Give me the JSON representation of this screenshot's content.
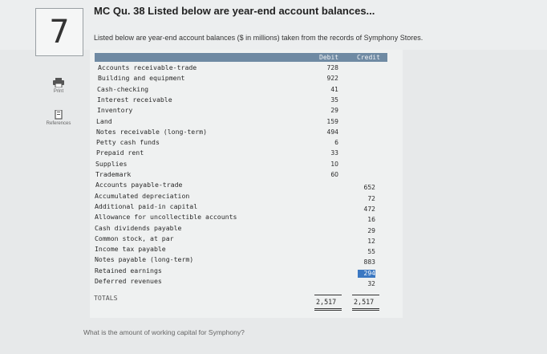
{
  "question": {
    "number": "7",
    "title": "MC Qu. 38 Listed below are year-end account balances...",
    "prompt": "Listed below are year-end account balances ($ in millions) taken from the records of Symphony Stores.",
    "ask": "What is the amount of working capital for Symphony?"
  },
  "sidebar": {
    "print_label": "Print",
    "references_label": "References"
  },
  "table": {
    "debit_header": "Debit",
    "credit_header": "Credit",
    "accounts": [
      "Accounts receivable-trade",
      "Building and equipment",
      "Cash-checking",
      "Interest receivable",
      "Inventory",
      "Land",
      "Notes receivable (long-term)",
      "Petty cash funds",
      "Prepaid rent",
      "Supplies",
      "Trademark",
      "Accounts payable-trade",
      "Accumulated depreciation",
      "Additional paid-in capital",
      "Allowance for uncollectible accounts",
      "Cash dividends payable",
      "Common stock, at par",
      "Income tax payable",
      "Notes payable (long-term)",
      "Retained earnings",
      "Deferred revenues"
    ],
    "debits": [
      "728",
      "922",
      "41",
      "35",
      "29",
      "159",
      "494",
      "6",
      "33",
      "10",
      "60"
    ],
    "credits": [
      "652",
      "72",
      "472",
      "16",
      "29",
      "12",
      "55",
      "883",
      "294",
      "32"
    ],
    "totals_label": "TOTALS",
    "total_debit": "2,517",
    "total_credit": "2,517"
  },
  "colors": {
    "header_bar": "#6f8aa3",
    "highlight": "#3b78c2"
  }
}
